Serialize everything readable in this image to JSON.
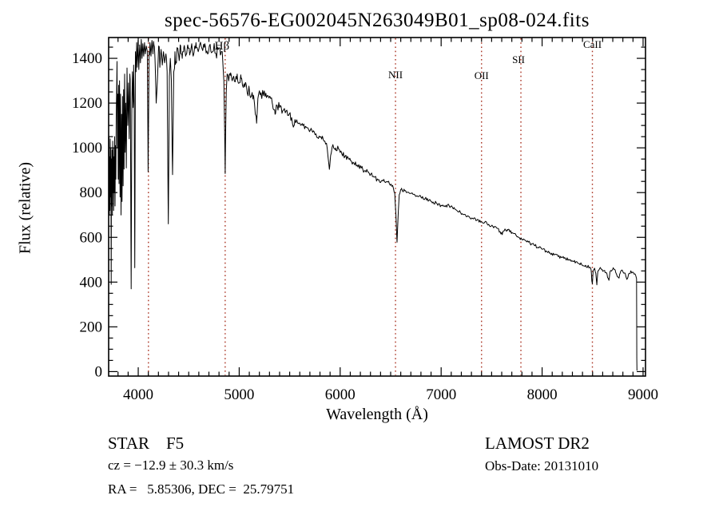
{
  "chart_data": {
    "type": "line",
    "title": "spec-56576-EG002045N263049B01_sp08-024.fits",
    "xlabel": "Wavelength (Å)",
    "ylabel": "Flux (relative)",
    "xlim": [
      3707,
      9024
    ],
    "ylim": [
      -20,
      1493
    ],
    "xticks": [
      4000,
      5000,
      6000,
      7000,
      8000,
      9000
    ],
    "yticks": [
      0,
      200,
      400,
      600,
      800,
      1000,
      1200,
      1400
    ],
    "minor_tick_step_x": 100,
    "minor_tick_step_y": 50,
    "grid": false,
    "legend": false,
    "line_color": "#000000",
    "spectral_line_color": "#aa3322",
    "spectral_lines": [
      {
        "label": "",
        "wavelength": 4101,
        "label_y": 62
      },
      {
        "label": "Hβ",
        "wavelength": 4861,
        "label_y": 62,
        "label_dx": -4,
        "font": 15
      },
      {
        "label": "NII",
        "wavelength": 6548,
        "label_y": 98,
        "label_dx": 0,
        "font": 13
      },
      {
        "label": "OII",
        "wavelength": 7400,
        "label_y": 99,
        "label_dx": 0,
        "font": 13
      },
      {
        "label": "SII",
        "wavelength": 7790,
        "label_y": 79,
        "label_dx": -3,
        "font": 13
      },
      {
        "label": "CaII",
        "wavelength": 8498,
        "label_y": 60,
        "label_dx": 0,
        "font": 13
      }
    ],
    "noise_regions": [
      [
        3707,
        3955,
        70
      ],
      [
        3955,
        4400,
        45
      ],
      [
        4400,
        4860,
        25
      ],
      [
        4870,
        5560,
        20
      ],
      [
        5560,
        6520,
        12
      ],
      [
        6520,
        7500,
        8
      ],
      [
        7500,
        8440,
        7
      ],
      [
        8440,
        8940,
        8
      ]
    ],
    "series": [
      {
        "name": "spectrum",
        "points": [
          [
            3708,
            790
          ],
          [
            3711,
            1050
          ],
          [
            3714,
            700
          ],
          [
            3717,
            960
          ],
          [
            3720,
            720
          ],
          [
            3723,
            1040
          ],
          [
            3726,
            780
          ],
          [
            3729,
            1000
          ],
          [
            3732,
            390
          ],
          [
            3735,
            950
          ],
          [
            3738,
            740
          ],
          [
            3741,
            990
          ],
          [
            3744,
            700
          ],
          [
            3747,
            1030
          ],
          [
            3750,
            800
          ],
          [
            3753,
            1000
          ],
          [
            3756,
            720
          ],
          [
            3759,
            960
          ],
          [
            3762,
            800
          ],
          [
            3766,
            1050
          ],
          [
            3770,
            740
          ],
          [
            3774,
            1010
          ],
          [
            3778,
            860
          ],
          [
            3782,
            1150
          ],
          [
            3786,
            1250
          ],
          [
            3790,
            1386
          ],
          [
            3794,
            1000
          ],
          [
            3798,
            1240
          ],
          [
            3802,
            860
          ],
          [
            3806,
            1280
          ],
          [
            3810,
            840
          ],
          [
            3815,
            1300
          ],
          [
            3820,
            780
          ],
          [
            3825,
            1240
          ],
          [
            3830,
            700
          ],
          [
            3835,
            1150
          ],
          [
            3840,
            760
          ],
          [
            3845,
            1230
          ],
          [
            3850,
            830
          ],
          [
            3855,
            1260
          ],
          [
            3860,
            905
          ],
          [
            3865,
            1330
          ],
          [
            3870,
            980
          ],
          [
            3876,
            1200
          ],
          [
            3882,
            910
          ],
          [
            3889,
            1357
          ],
          [
            3896,
            1100
          ],
          [
            3903,
            1290
          ],
          [
            3910,
            1040
          ],
          [
            3917,
            1330
          ],
          [
            3923,
            1150
          ],
          [
            3930,
            370
          ],
          [
            3937,
            1200
          ],
          [
            3943,
            1340
          ],
          [
            3949,
            1180
          ],
          [
            3955,
            1370
          ],
          [
            3960,
            1200
          ],
          [
            3966,
            464
          ],
          [
            3972,
            1430
          ],
          [
            3978,
            1340
          ],
          [
            3985,
            1470
          ],
          [
            3991,
            1360
          ],
          [
            3998,
            1480
          ],
          [
            4006,
            1350
          ],
          [
            4014,
            1460
          ],
          [
            4022,
            1380
          ],
          [
            4030,
            1485
          ],
          [
            4038,
            1400
          ],
          [
            4046,
            1465
          ],
          [
            4054,
            1410
          ],
          [
            4062,
            1470
          ],
          [
            4070,
            1420
          ],
          [
            4080,
            1455
          ],
          [
            4090,
            1430
          ],
          [
            4098,
            893
          ],
          [
            4107,
            1430
          ],
          [
            4116,
            1470
          ],
          [
            4126,
            1410
          ],
          [
            4136,
            1480
          ],
          [
            4146,
            1420
          ],
          [
            4156,
            1460
          ],
          [
            4166,
            1400
          ],
          [
            4178,
            1200
          ],
          [
            4190,
            1300
          ],
          [
            4202,
            1455
          ],
          [
            4214,
            1360
          ],
          [
            4226,
            1440
          ],
          [
            4238,
            1370
          ],
          [
            4250,
            1430
          ],
          [
            4262,
            1380
          ],
          [
            4274,
            1420
          ],
          [
            4286,
            1340
          ],
          [
            4298,
            660
          ],
          [
            4308,
            1320
          ],
          [
            4318,
            1400
          ],
          [
            4328,
            1300
          ],
          [
            4340,
            880
          ],
          [
            4352,
            1340
          ],
          [
            4364,
            1430
          ],
          [
            4378,
            1380
          ],
          [
            4392,
            1445
          ],
          [
            4406,
            1390
          ],
          [
            4420,
            1455
          ],
          [
            4436,
            1400
          ],
          [
            4452,
            1450
          ],
          [
            4470,
            1410
          ],
          [
            4490,
            1460
          ],
          [
            4510,
            1415
          ],
          [
            4530,
            1465
          ],
          [
            4550,
            1420
          ],
          [
            4572,
            1470
          ],
          [
            4594,
            1430
          ],
          [
            4616,
            1472
          ],
          [
            4638,
            1435
          ],
          [
            4660,
            1465
          ],
          [
            4682,
            1430
          ],
          [
            4704,
            1455
          ],
          [
            4726,
            1425
          ],
          [
            4748,
            1450
          ],
          [
            4770,
            1420
          ],
          [
            4792,
            1440
          ],
          [
            4814,
            1415
          ],
          [
            4832,
            1430
          ],
          [
            4848,
            1300
          ],
          [
            4857,
            1050
          ],
          [
            4861,
            885
          ],
          [
            4866,
            1080
          ],
          [
            4872,
            1250
          ],
          [
            4880,
            1330
          ],
          [
            4900,
            1315
          ],
          [
            4915,
            1335
          ],
          [
            4930,
            1300
          ],
          [
            4945,
            1320
          ],
          [
            4960,
            1295
          ],
          [
            4980,
            1330
          ],
          [
            5000,
            1290
          ],
          [
            5020,
            1310
          ],
          [
            5040,
            1270
          ],
          [
            5060,
            1290
          ],
          [
            5080,
            1245
          ],
          [
            5100,
            1260
          ],
          [
            5120,
            1230
          ],
          [
            5140,
            1235
          ],
          [
            5160,
            1150
          ],
          [
            5172,
            1110
          ],
          [
            5185,
            1220
          ],
          [
            5200,
            1255
          ],
          [
            5220,
            1230
          ],
          [
            5245,
            1250
          ],
          [
            5270,
            1225
          ],
          [
            5300,
            1230
          ],
          [
            5330,
            1195
          ],
          [
            5355,
            1150
          ],
          [
            5375,
            1190
          ],
          [
            5400,
            1180
          ],
          [
            5430,
            1165
          ],
          [
            5460,
            1160
          ],
          [
            5490,
            1145
          ],
          [
            5520,
            1135
          ],
          [
            5545,
            1100
          ],
          [
            5570,
            1125
          ],
          [
            5600,
            1110
          ],
          [
            5630,
            1100
          ],
          [
            5660,
            1095
          ],
          [
            5690,
            1080
          ],
          [
            5720,
            1078
          ],
          [
            5750,
            1060
          ],
          [
            5780,
            1045
          ],
          [
            5810,
            1050
          ],
          [
            5840,
            1030
          ],
          [
            5865,
            1020
          ],
          [
            5880,
            960
          ],
          [
            5893,
            904
          ],
          [
            5905,
            965
          ],
          [
            5925,
            1010
          ],
          [
            5955,
            1000
          ],
          [
            5985,
            995
          ],
          [
            6015,
            975
          ],
          [
            6050,
            962
          ],
          [
            6090,
            948
          ],
          [
            6130,
            935
          ],
          [
            6170,
            922
          ],
          [
            6210,
            910
          ],
          [
            6250,
            897
          ],
          [
            6290,
            885
          ],
          [
            6330,
            872
          ],
          [
            6370,
            860
          ],
          [
            6410,
            852
          ],
          [
            6450,
            845
          ],
          [
            6490,
            838
          ],
          [
            6520,
            832
          ],
          [
            6540,
            800
          ],
          [
            6552,
            700
          ],
          [
            6563,
            578
          ],
          [
            6574,
            700
          ],
          [
            6585,
            790
          ],
          [
            6605,
            815
          ],
          [
            6640,
            808
          ],
          [
            6680,
            800
          ],
          [
            6720,
            793
          ],
          [
            6760,
            786
          ],
          [
            6800,
            780
          ],
          [
            6840,
            773
          ],
          [
            6880,
            766
          ],
          [
            6920,
            758
          ],
          [
            6960,
            750
          ],
          [
            7000,
            743
          ],
          [
            7040,
            737
          ],
          [
            7075,
            745
          ],
          [
            7110,
            735
          ],
          [
            7150,
            722
          ],
          [
            7190,
            712
          ],
          [
            7230,
            703
          ],
          [
            7270,
            694
          ],
          [
            7310,
            685
          ],
          [
            7350,
            676
          ],
          [
            7390,
            668
          ],
          [
            7430,
            668
          ],
          [
            7470,
            658
          ],
          [
            7510,
            650
          ],
          [
            7550,
            642
          ],
          [
            7585,
            625
          ],
          [
            7605,
            612
          ],
          [
            7625,
            630
          ],
          [
            7660,
            632
          ],
          [
            7700,
            622
          ],
          [
            7740,
            610
          ],
          [
            7775,
            598
          ],
          [
            7800,
            590
          ],
          [
            7840,
            584
          ],
          [
            7880,
            574
          ],
          [
            7920,
            565
          ],
          [
            7960,
            556
          ],
          [
            8000,
            547
          ],
          [
            8040,
            539
          ],
          [
            8080,
            530
          ],
          [
            8120,
            522
          ],
          [
            8160,
            514
          ],
          [
            8200,
            510
          ],
          [
            8230,
            505
          ],
          [
            8270,
            498
          ],
          [
            8310,
            492
          ],
          [
            8350,
            486
          ],
          [
            8390,
            480
          ],
          [
            8430,
            475
          ],
          [
            8460,
            470
          ],
          [
            8485,
            455
          ],
          [
            8492,
            405
          ],
          [
            8498,
            392
          ],
          [
            8505,
            450
          ],
          [
            8520,
            462
          ],
          [
            8532,
            440
          ],
          [
            8542,
            388
          ],
          [
            8552,
            448
          ],
          [
            8570,
            460
          ],
          [
            8595,
            456
          ],
          [
            8620,
            452
          ],
          [
            8645,
            430
          ],
          [
            8662,
            408
          ],
          [
            8676,
            450
          ],
          [
            8700,
            458
          ],
          [
            8725,
            452
          ],
          [
            8745,
            425
          ],
          [
            8762,
            418
          ],
          [
            8778,
            448
          ],
          [
            8800,
            446
          ],
          [
            8822,
            440
          ],
          [
            8840,
            412
          ],
          [
            8858,
            438
          ],
          [
            8878,
            450
          ],
          [
            8898,
            444
          ],
          [
            8915,
            436
          ],
          [
            8928,
            428
          ],
          [
            8935,
            415
          ],
          [
            8937,
            200
          ],
          [
            8938,
            60
          ],
          [
            8939,
            5
          ]
        ]
      }
    ]
  },
  "annotations": {
    "bottom_left": [
      "STAR    F5",
      "cz = −12.9 ± 30.3 km/s",
      "RA =   5.85306, DEC =  25.79751"
    ],
    "bottom_right": [
      "LAMOST DR2",
      "Obs-Date: 20131010"
    ]
  }
}
